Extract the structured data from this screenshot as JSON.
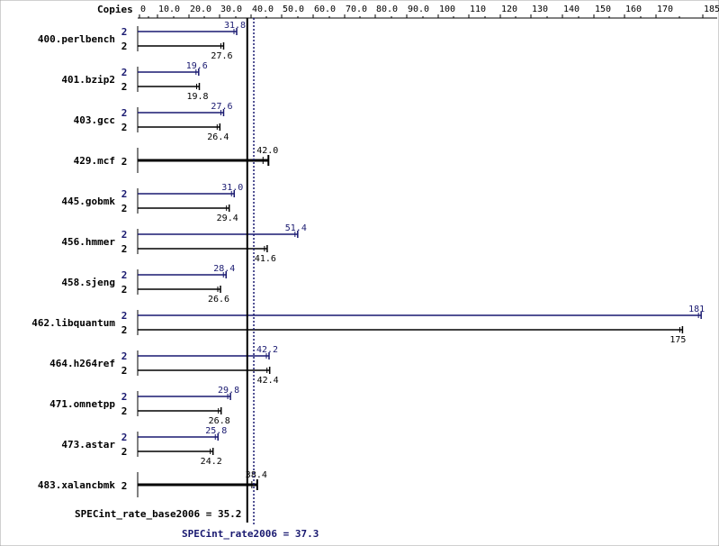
{
  "chart_data": {
    "type": "bar",
    "orientation": "horizontal",
    "copies_label": "Copies",
    "x_ticks": [
      "0",
      "10.0",
      "20.0",
      "30.0",
      "40.0",
      "50.0",
      "60.0",
      "70.0",
      "80.0",
      "90.0",
      "100",
      "110",
      "120",
      "130",
      "140",
      "150",
      "160",
      "170",
      "185"
    ],
    "xlim": [
      0,
      185
    ],
    "benchmarks": [
      {
        "name": "400.perlbench",
        "peak": {
          "copies": "2",
          "value": 31.8,
          "label": "31.8"
        },
        "base": {
          "copies": "2",
          "value": 27.6,
          "label": "27.6"
        }
      },
      {
        "name": "401.bzip2",
        "peak": {
          "copies": "2",
          "value": 19.6,
          "label": "19.6"
        },
        "base": {
          "copies": "2",
          "value": 19.8,
          "label": "19.8"
        }
      },
      {
        "name": "403.gcc",
        "peak": {
          "copies": "2",
          "value": 27.6,
          "label": "27.6"
        },
        "base": {
          "copies": "2",
          "value": 26.4,
          "label": "26.4"
        }
      },
      {
        "name": "429.mcf",
        "combined": {
          "copies": "2",
          "value": 42.0,
          "label": "42.0"
        }
      },
      {
        "name": "445.gobmk",
        "peak": {
          "copies": "2",
          "value": 31.0,
          "label": "31.0"
        },
        "base": {
          "copies": "2",
          "value": 29.4,
          "label": "29.4"
        }
      },
      {
        "name": "456.hmmer",
        "peak": {
          "copies": "2",
          "value": 51.4,
          "label": "51.4"
        },
        "base": {
          "copies": "2",
          "value": 41.6,
          "label": "41.6"
        }
      },
      {
        "name": "458.sjeng",
        "peak": {
          "copies": "2",
          "value": 28.4,
          "label": "28.4"
        },
        "base": {
          "copies": "2",
          "value": 26.6,
          "label": "26.6"
        }
      },
      {
        "name": "462.libquantum",
        "peak": {
          "copies": "2",
          "value": 181,
          "label": "181"
        },
        "base": {
          "copies": "2",
          "value": 175,
          "label": "175"
        }
      },
      {
        "name": "464.h264ref",
        "peak": {
          "copies": "2",
          "value": 42.2,
          "label": "42.2"
        },
        "base": {
          "copies": "2",
          "value": 42.4,
          "label": "42.4"
        }
      },
      {
        "name": "471.omnetpp",
        "peak": {
          "copies": "2",
          "value": 29.8,
          "label": "29.8"
        },
        "base": {
          "copies": "2",
          "value": 26.8,
          "label": "26.8"
        }
      },
      {
        "name": "473.astar",
        "peak": {
          "copies": "2",
          "value": 25.8,
          "label": "25.8"
        },
        "base": {
          "copies": "2",
          "value": 24.2,
          "label": "24.2"
        }
      },
      {
        "name": "483.xalancbmk",
        "combined": {
          "copies": "2",
          "value": 38.4,
          "label": "38.4"
        }
      }
    ],
    "base_summary": {
      "label": "SPECint_rate_base2006 = 35.2",
      "value": 35.2
    },
    "peak_summary": {
      "label": "SPECint_rate2006 = 37.3",
      "value": 37.3
    },
    "colors": {
      "base": "#000000",
      "peak": "#191970"
    }
  }
}
